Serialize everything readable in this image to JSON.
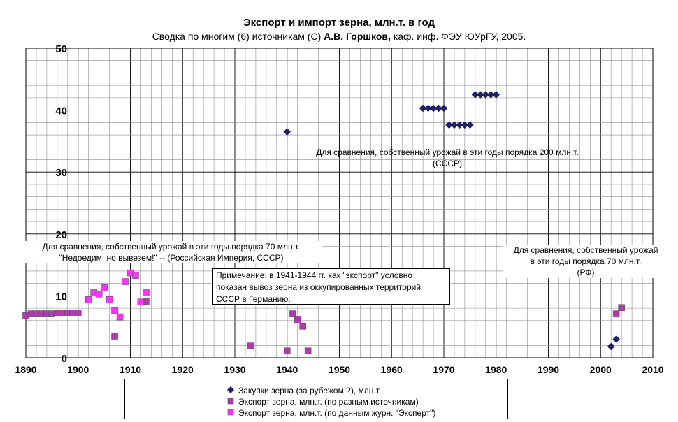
{
  "title": "Экспорт и импорт зерна, млн.т. в год",
  "subtitle": {
    "part1": "Сводка по многим (6) источникам (С) ",
    "author": "А.В. Горшков,",
    "part2": " каф. инф. ФЭУ ЮУрГУ, 2005."
  },
  "notes": {
    "ussr_line1": "Для сравнения, собственный урожай в эти годы порядка 200 млн.т.",
    "ussr_line2": "(СССР)",
    "empire_line1": "Для сравнения, собственный урожай в эти годы порядка 70 млн.т.",
    "empire_line2": "\"Недоедим, но вывезем!\" -- (Российская Империя, СССР)",
    "rf_line1": "Для сравнения, собственный урожай",
    "rf_line2": "в эти годы порядка 70 млн.т.",
    "rf_line3": "(РФ)",
    "box_line1": "Примечание: в 1941-1944 гг. как \"экспорт\" условно",
    "box_line2": "показан вывоз зерна из оккупированных территорий",
    "box_line3": "СССР в Германию."
  },
  "chart_data": {
    "type": "scatter",
    "xlim": [
      1890,
      2010
    ],
    "ylim": [
      0,
      50
    ],
    "x_ticks": [
      1890,
      1900,
      1910,
      1920,
      1930,
      1940,
      1950,
      1960,
      1970,
      1980,
      1990,
      2000,
      2010
    ],
    "y_ticks": [
      0,
      10,
      20,
      30,
      40,
      50
    ],
    "grid": true,
    "legend_position": "bottom",
    "series": [
      {
        "name": "Закупки зерна (за рубежом ?), млн.т.",
        "marker": "diamond",
        "color": "#1f1f6b",
        "points": [
          [
            1940,
            36.5
          ],
          [
            1966,
            40.3
          ],
          [
            1967,
            40.3
          ],
          [
            1968,
            40.3
          ],
          [
            1969,
            40.3
          ],
          [
            1970,
            40.3
          ],
          [
            1971,
            37.6
          ],
          [
            1972,
            37.6
          ],
          [
            1973,
            37.6
          ],
          [
            1974,
            37.6
          ],
          [
            1975,
            37.6
          ],
          [
            1976,
            42.5
          ],
          [
            1977,
            42.5
          ],
          [
            1978,
            42.5
          ],
          [
            1979,
            42.5
          ],
          [
            1980,
            42.5
          ],
          [
            2002,
            1.8
          ],
          [
            2003,
            3.0
          ]
        ]
      },
      {
        "name": "Экспорт зерна, млн.т. (по разным источникам)",
        "marker": "square",
        "color": "#b03ab0",
        "points": [
          [
            1890,
            6.8
          ],
          [
            1891,
            7.1
          ],
          [
            1892,
            7.1
          ],
          [
            1893,
            7.1
          ],
          [
            1894,
            7.1
          ],
          [
            1895,
            7.1
          ],
          [
            1896,
            7.2
          ],
          [
            1897,
            7.2
          ],
          [
            1898,
            7.2
          ],
          [
            1899,
            7.2
          ],
          [
            1900,
            7.2
          ],
          [
            1907,
            3.5
          ],
          [
            1913,
            9.1
          ],
          [
            1933,
            1.9
          ],
          [
            1940,
            1.1
          ],
          [
            1941,
            7.1
          ],
          [
            1942,
            6.1
          ],
          [
            1943,
            5.1
          ],
          [
            1944,
            1.1
          ],
          [
            2003,
            7.1
          ],
          [
            2004,
            8.1
          ]
        ]
      },
      {
        "name": "Экспорт зерна, млн.т. (по данным журн. \"Эксперт\")",
        "marker": "square",
        "color": "#ff33ff",
        "points": [
          [
            1902,
            9.4
          ],
          [
            1903,
            10.5
          ],
          [
            1904,
            10.3
          ],
          [
            1905,
            11.3
          ],
          [
            1906,
            9.4
          ],
          [
            1907,
            7.6
          ],
          [
            1908,
            6.6
          ],
          [
            1909,
            12.3
          ],
          [
            1910,
            13.7
          ],
          [
            1911,
            13.3
          ],
          [
            1912,
            9.0
          ],
          [
            1913,
            10.5
          ]
        ]
      }
    ]
  }
}
